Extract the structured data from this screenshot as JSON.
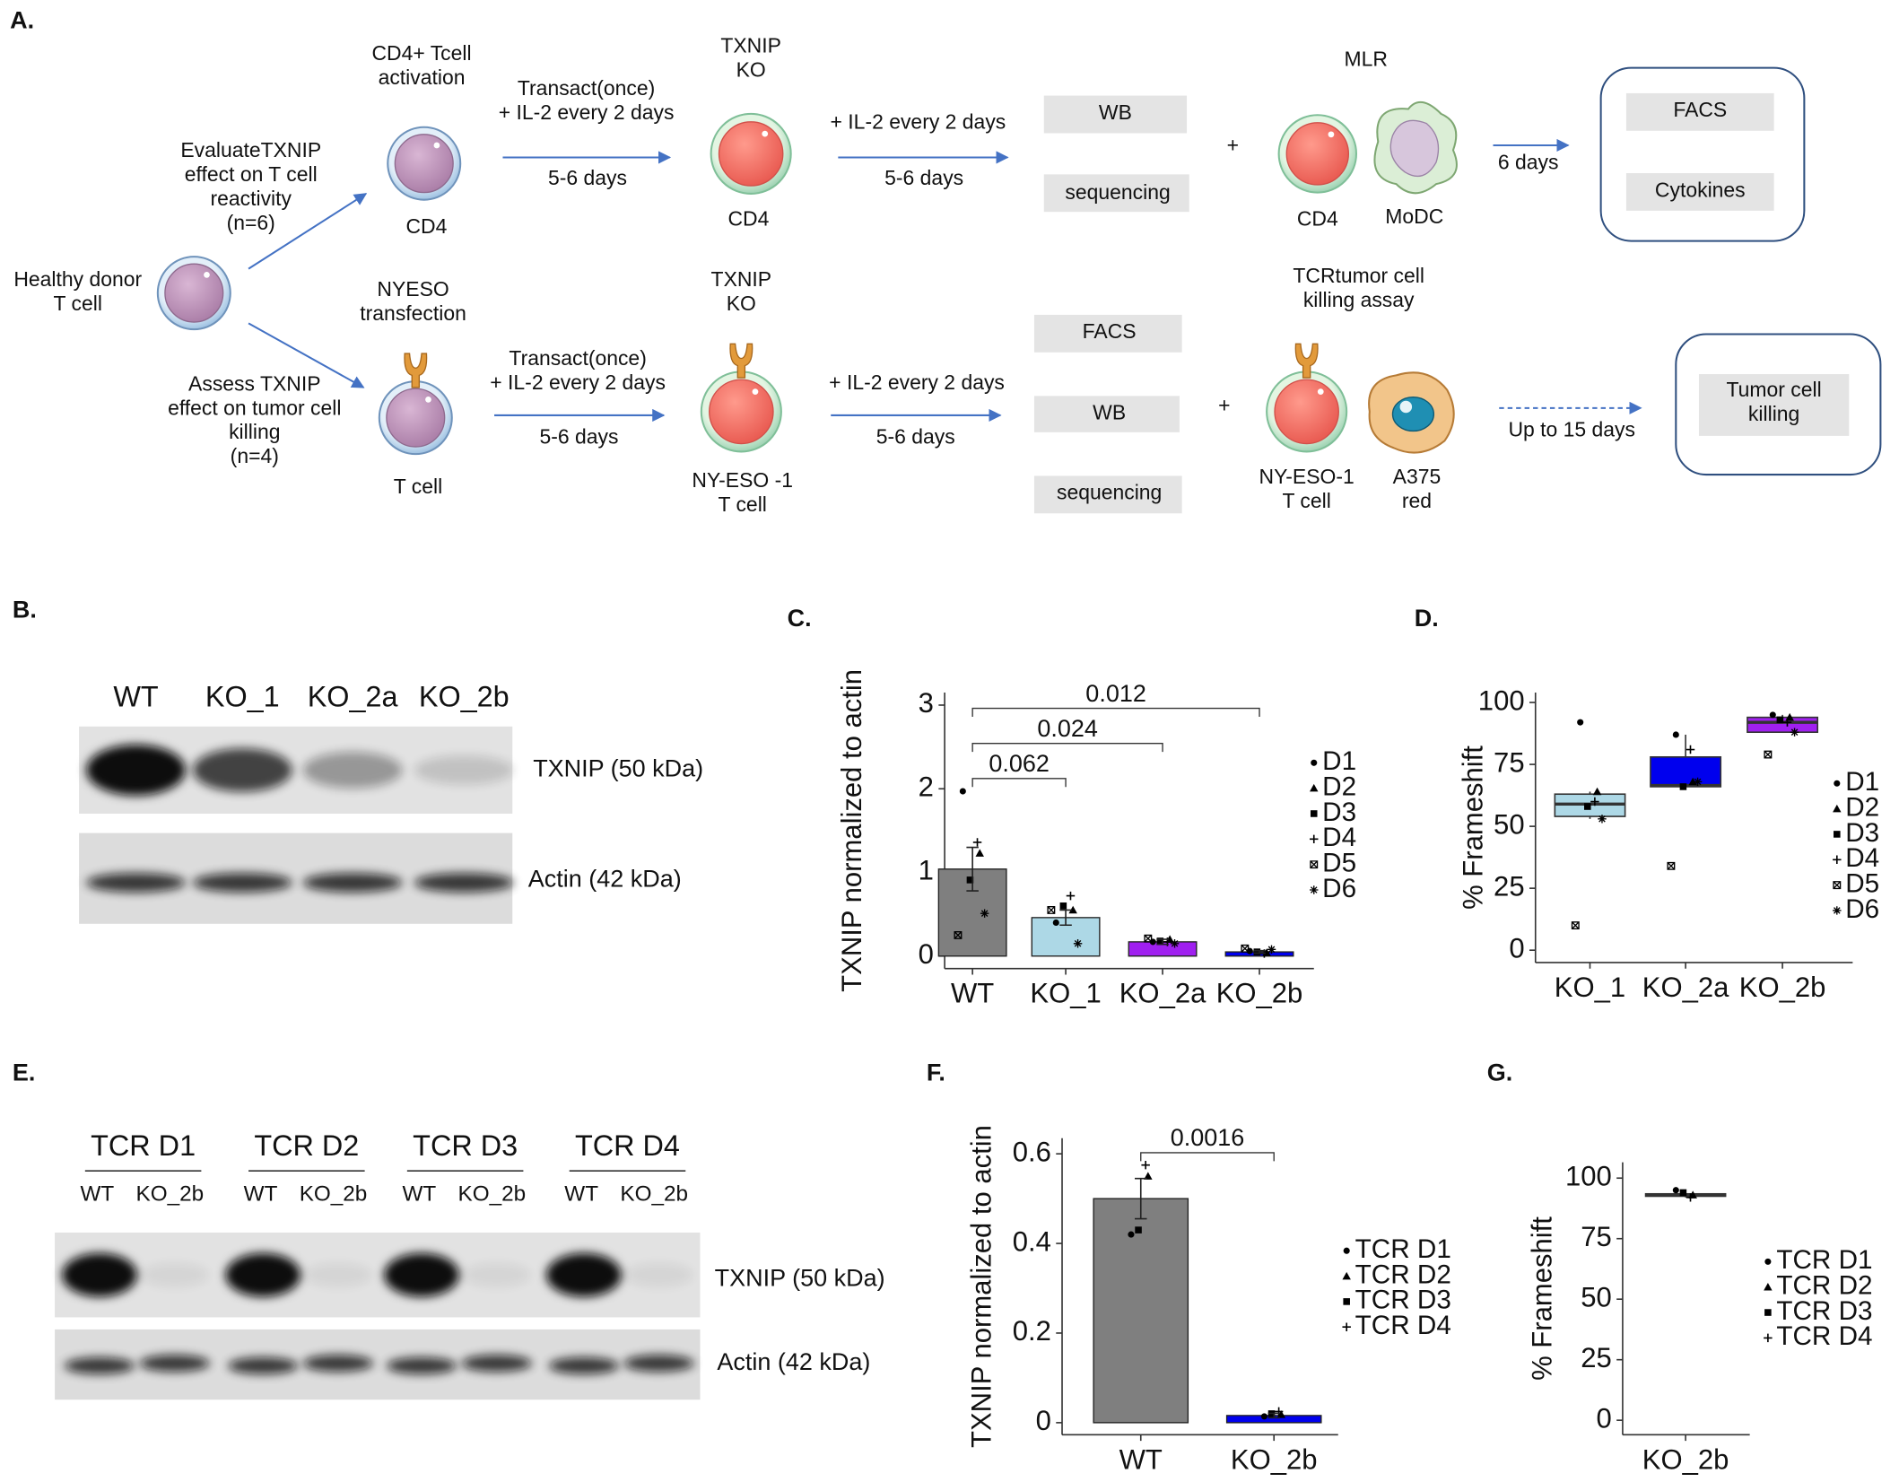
{
  "diagram": {
    "panel_label": "A.",
    "source": [
      "Healthy donor",
      "T cell"
    ],
    "top": {
      "step1": [
        "CD4+ Tcell",
        "activation"
      ],
      "aim": [
        "EvaluateTXNIP",
        "effect on T cell",
        "reactivity",
        "(n=6)"
      ],
      "cell1": "CD4",
      "culture1": [
        "Transact(once)",
        "+ IL-2 every 2 days"
      ],
      "duration1": "5-6 days",
      "ko": [
        "TXNIP",
        "KO"
      ],
      "cell2": "CD4",
      "culture2": "+ IL-2 every 2 days",
      "duration2": "5-6 days",
      "assays": [
        "WB",
        "sequencing"
      ],
      "plus": "+",
      "assay_title": "MLR",
      "cells": [
        "CD4",
        "MoDC"
      ],
      "duration3": "6 days",
      "readouts": [
        "FACS",
        "Cytokines"
      ]
    },
    "bottom": {
      "step1": [
        "NYESO",
        "transfection"
      ],
      "aim": [
        "Assess TXNIP",
        "effect on tumor cell",
        "killing",
        "(n=4)"
      ],
      "cell1": "T cell",
      "culture1": [
        "Transact(once)",
        "+ IL-2 every 2 days"
      ],
      "duration1": "5-6 days",
      "ko": [
        "TXNIP",
        "KO"
      ],
      "cell2": [
        "NY-ESO -1",
        "T cell"
      ],
      "culture2": "+ IL-2 every 2 days",
      "duration2": "5-6 days",
      "assays": [
        "FACS",
        "WB",
        "sequencing"
      ],
      "plus": "+",
      "assay_title": [
        "TCRtumor cell",
        "killing assay"
      ],
      "cells": [
        [
          "NY-ESO-1",
          "T cell"
        ],
        [
          "A375",
          "red"
        ]
      ],
      "duration3": "Up to 15 days",
      "readouts": [
        [
          "Tumor cell",
          "killing"
        ]
      ]
    }
  },
  "blot_b": {
    "panel_label": "B.",
    "lanes": [
      "WT",
      "KO_1",
      "KO_2a",
      "KO_2b"
    ],
    "bands": [
      "TXNIP (50 kDa)",
      "Actin (42 kDa)"
    ]
  },
  "blot_e": {
    "panel_label": "E.",
    "groups": [
      "TCR D1",
      "TCR D2",
      "TCR D3",
      "TCR D4"
    ],
    "lanes": [
      "WT",
      "KO_2b"
    ],
    "bands": [
      "TXNIP (50 kDa)",
      "Actin (42 kDa)"
    ]
  },
  "chart_data": [
    {
      "type": "bar",
      "panel_label": "C.",
      "ylabel": "TXNIP normalized to actin",
      "categories": [
        "WT",
        "KO_1",
        "KO_2a",
        "KO_2b"
      ],
      "values": [
        1.04,
        0.46,
        0.17,
        0.05
      ],
      "errors": [
        0.26,
        0.09,
        0.03,
        0.015
      ],
      "colors": [
        "#7f7f7f",
        "#add8e6",
        "#a020f0",
        "#0000ee"
      ],
      "series": [
        {
          "name": "D1",
          "marker": "circle",
          "values": [
            1.97,
            0.4,
            0.17,
            0.06
          ]
        },
        {
          "name": "D2",
          "marker": "triangle",
          "values": [
            1.23,
            0.55,
            0.2,
            0.04
          ]
        },
        {
          "name": "D3",
          "marker": "square",
          "values": [
            0.91,
            0.6,
            0.18,
            0.05
          ]
        },
        {
          "name": "D4",
          "marker": "plus",
          "values": [
            1.36,
            0.72,
            0.17,
            0.03
          ]
        },
        {
          "name": "D5",
          "marker": "boxed-x",
          "values": [
            0.25,
            0.55,
            0.21,
            0.09
          ]
        },
        {
          "name": "D6",
          "marker": "star",
          "values": [
            0.51,
            0.15,
            0.15,
            0.08
          ]
        }
      ],
      "comparisons": [
        {
          "label": "0.062",
          "groups": [
            "WT",
            "KO_1"
          ]
        },
        {
          "label": "0.024",
          "groups": [
            "WT",
            "KO_2a"
          ]
        },
        {
          "label": "0.012",
          "groups": [
            "WT",
            "KO_2b"
          ]
        }
      ],
      "ylim": [
        -0.15,
        3.15
      ],
      "yticks": [
        0,
        1,
        2,
        3
      ]
    },
    {
      "type": "box",
      "panel_label": "D.",
      "ylabel": "% Frameshift",
      "categories": [
        "KO_1",
        "KO_2a",
        "KO_2b"
      ],
      "q1": [
        54,
        66,
        88
      ],
      "median": [
        59,
        66.5,
        92
      ],
      "q3": [
        63,
        78,
        94
      ],
      "whisker_low": [
        53,
        66,
        88
      ],
      "whisker_high": [
        64,
        87,
        95
      ],
      "colors": [
        "#add8e6",
        "#0000ee",
        "#a020f0"
      ],
      "series": [
        {
          "name": "D1",
          "marker": "circle",
          "values": [
            92,
            87,
            95
          ]
        },
        {
          "name": "D2",
          "marker": "triangle",
          "values": [
            64,
            68,
            94
          ]
        },
        {
          "name": "D3",
          "marker": "square",
          "values": [
            58,
            66,
            93
          ]
        },
        {
          "name": "D4",
          "marker": "plus",
          "values": [
            60,
            81,
            92
          ]
        },
        {
          "name": "D5",
          "marker": "boxed-x",
          "values": [
            10,
            34,
            79
          ]
        },
        {
          "name": "D6",
          "marker": "star",
          "values": [
            53,
            68,
            88
          ]
        }
      ],
      "ylim": [
        -5,
        104
      ],
      "yticks": [
        0,
        25,
        50,
        75,
        100
      ]
    },
    {
      "type": "bar",
      "panel_label": "F.",
      "ylabel": "TXNIP normalized to actin",
      "categories": [
        "WT",
        "KO_2b"
      ],
      "values": [
        0.5,
        0.016
      ],
      "errors": [
        0.045,
        0.005
      ],
      "colors": [
        "#7f7f7f",
        "#0000ee"
      ],
      "series": [
        {
          "name": "TCR D1",
          "marker": "circle",
          "values": [
            0.42,
            0.014
          ]
        },
        {
          "name": "TCR D2",
          "marker": "triangle",
          "values": [
            0.55,
            0.018
          ]
        },
        {
          "name": "TCR D3",
          "marker": "square",
          "values": [
            0.43,
            0.02
          ]
        },
        {
          "name": "TCR D4",
          "marker": "plus",
          "values": [
            0.575,
            0.025
          ]
        }
      ],
      "comparisons": [
        {
          "label": "0.0016",
          "groups": [
            "WT",
            "KO_2b"
          ]
        }
      ],
      "ylim": [
        -0.027,
        0.635
      ],
      "yticks": [
        0,
        0.2,
        0.4,
        0.6
      ]
    },
    {
      "type": "box",
      "panel_label": "G.",
      "ylabel": "% Frameshift",
      "categories": [
        "KO_2b"
      ],
      "q1": [
        92.5
      ],
      "median": [
        93
      ],
      "q3": [
        93.5
      ],
      "whisker_low": [
        92
      ],
      "whisker_high": [
        95
      ],
      "colors": [
        "#a020f0"
      ],
      "series": [
        {
          "name": "TCR D1",
          "marker": "circle",
          "values": [
            95
          ]
        },
        {
          "name": "TCR D2",
          "marker": "triangle",
          "values": [
            93
          ]
        },
        {
          "name": "TCR D3",
          "marker": "square",
          "values": [
            94
          ]
        },
        {
          "name": "TCR D4",
          "marker": "plus",
          "values": [
            92
          ]
        }
      ],
      "ylim": [
        -6,
        106.5
      ],
      "yticks": [
        0,
        25,
        50,
        75,
        100
      ]
    }
  ]
}
